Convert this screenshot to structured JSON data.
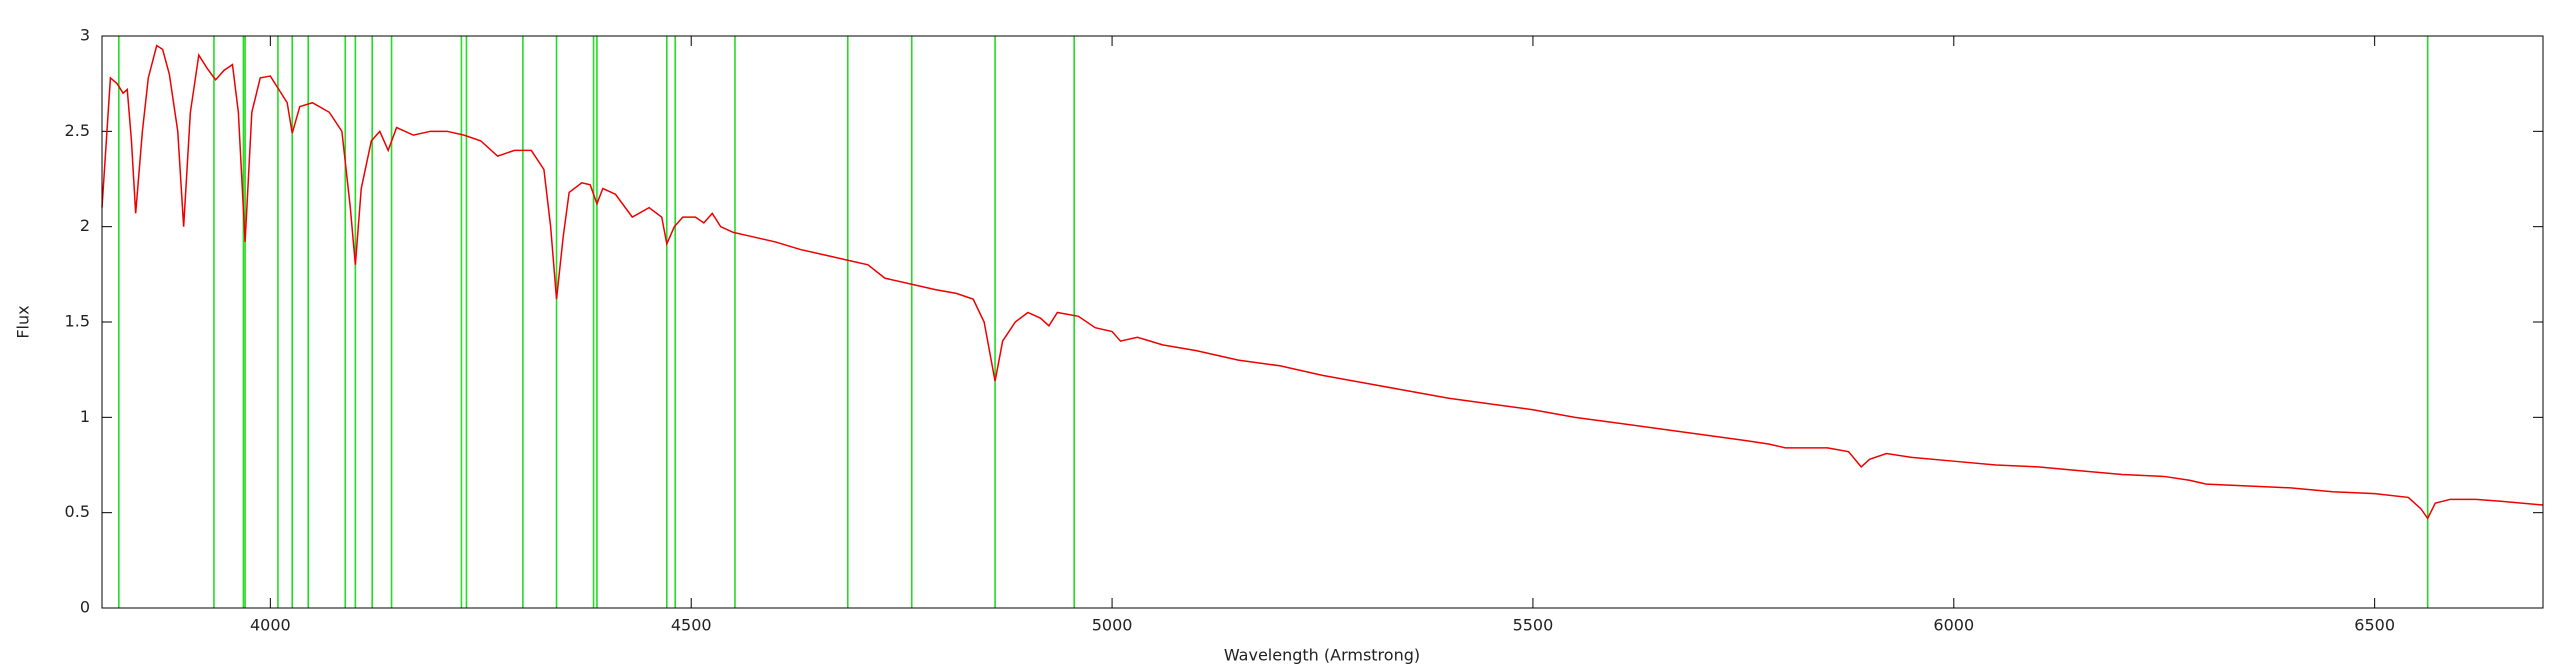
{
  "chart_data": {
    "type": "line",
    "xlabel": "Wavelength (Armstrong)",
    "ylabel": "Flux",
    "xlim": [
      3800,
      6700
    ],
    "ylim": [
      0,
      3
    ],
    "xticks": [
      4000,
      4500,
      5000,
      5500,
      6000,
      6500
    ],
    "yticks": [
      0,
      0.5,
      1,
      1.5,
      2,
      2.5,
      3
    ],
    "line_wavelengths": [
      3820,
      3933,
      3968,
      3970,
      4009,
      4026,
      4045,
      4089,
      4101,
      4121,
      4144,
      4227,
      4233,
      4300,
      4340,
      4384,
      4388,
      4471,
      4481,
      4552,
      4686,
      4762,
      4861,
      4955,
      6563
    ],
    "line_color": "#22dd22",
    "series": [
      {
        "color": "#ee0000",
        "x": [
          3800,
          3810,
          3818,
          3825,
          3830,
          3835,
          3840,
          3848,
          3855,
          3865,
          3872,
          3880,
          3890,
          3897,
          3905,
          3915,
          3925,
          3935,
          3945,
          3955,
          3962,
          3970,
          3978,
          3988,
          4000,
          4010,
          4020,
          4026,
          4035,
          4050,
          4070,
          4085,
          4095,
          4101,
          4108,
          4120,
          4130,
          4140,
          4150,
          4170,
          4190,
          4210,
          4230,
          4250,
          4270,
          4290,
          4310,
          4325,
          4333,
          4340,
          4348,
          4355,
          4370,
          4380,
          4388,
          4395,
          4410,
          4430,
          4450,
          4465,
          4471,
          4480,
          4490,
          4505,
          4515,
          4525,
          4535,
          4550,
          4570,
          4600,
          4630,
          4660,
          4690,
          4710,
          4730,
          4760,
          4790,
          4815,
          4835,
          4848,
          4861,
          4870,
          4885,
          4900,
          4915,
          4925,
          4935,
          4960,
          4980,
          5000,
          5010,
          5030,
          5060,
          5100,
          5150,
          5200,
          5250,
          5300,
          5350,
          5400,
          5450,
          5500,
          5550,
          5600,
          5650,
          5700,
          5750,
          5780,
          5800,
          5850,
          5875,
          5890,
          5900,
          5920,
          5950,
          6000,
          6050,
          6100,
          6150,
          6200,
          6250,
          6280,
          6300,
          6350,
          6400,
          6450,
          6500,
          6540,
          6555,
          6563,
          6572,
          6590,
          6620,
          6650,
          6700
        ],
        "values": [
          2.1,
          2.78,
          2.75,
          2.7,
          2.72,
          2.45,
          2.07,
          2.5,
          2.78,
          2.95,
          2.93,
          2.8,
          2.5,
          2.0,
          2.6,
          2.9,
          2.83,
          2.77,
          2.82,
          2.85,
          2.6,
          1.92,
          2.6,
          2.78,
          2.79,
          2.72,
          2.65,
          2.49,
          2.63,
          2.65,
          2.6,
          2.5,
          2.1,
          1.8,
          2.2,
          2.45,
          2.5,
          2.4,
          2.52,
          2.48,
          2.5,
          2.5,
          2.48,
          2.45,
          2.37,
          2.4,
          2.4,
          2.3,
          2.0,
          1.62,
          1.95,
          2.18,
          2.23,
          2.22,
          2.12,
          2.2,
          2.17,
          2.05,
          2.1,
          2.05,
          1.91,
          2.0,
          2.05,
          2.05,
          2.02,
          2.07,
          2.0,
          1.97,
          1.95,
          1.92,
          1.88,
          1.85,
          1.82,
          1.8,
          1.73,
          1.7,
          1.67,
          1.65,
          1.62,
          1.5,
          1.19,
          1.4,
          1.5,
          1.55,
          1.52,
          1.48,
          1.55,
          1.53,
          1.47,
          1.45,
          1.4,
          1.42,
          1.38,
          1.35,
          1.3,
          1.27,
          1.22,
          1.18,
          1.14,
          1.1,
          1.07,
          1.04,
          1.0,
          0.97,
          0.94,
          0.91,
          0.88,
          0.86,
          0.84,
          0.84,
          0.82,
          0.74,
          0.78,
          0.81,
          0.79,
          0.77,
          0.75,
          0.74,
          0.72,
          0.7,
          0.69,
          0.67,
          0.65,
          0.64,
          0.63,
          0.61,
          0.6,
          0.58,
          0.52,
          0.47,
          0.55,
          0.57,
          0.57,
          0.56,
          0.54
        ]
      }
    ]
  }
}
